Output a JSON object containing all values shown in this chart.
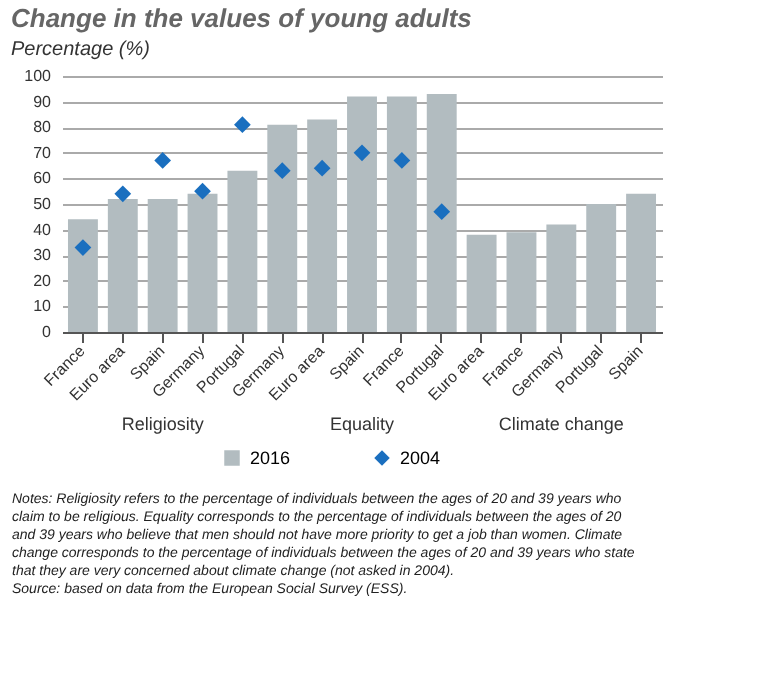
{
  "chart_data": {
    "type": "bar",
    "title": "Change in the values of young adults",
    "subtitle": "Percentage (%)",
    "categories": [
      "France",
      "Euro area",
      "Spain",
      "Germany",
      "Portugal",
      "Germany",
      "Euro area",
      "Spain",
      "France",
      "Portugal",
      "Euro area",
      "France",
      "Germany",
      "Portugal",
      "Spain"
    ],
    "series": [
      {
        "name": "2016",
        "color": "#b2bcc0",
        "values": [
          44,
          52,
          52,
          54,
          63,
          81,
          83,
          92,
          92,
          93,
          38,
          39,
          42,
          50,
          54
        ]
      },
      {
        "name": "2004",
        "type": "scatter",
        "marker": "diamond",
        "color": "#1a6fbf",
        "values": [
          33,
          54,
          67,
          55,
          81,
          63,
          64,
          70,
          67,
          47,
          null,
          null,
          null,
          null,
          null
        ]
      }
    ],
    "ylim": [
      0,
      100
    ],
    "yticks": [
      0,
      10,
      20,
      30,
      40,
      50,
      60,
      70,
      80,
      90,
      100
    ],
    "grid": "y",
    "legend": "bottom",
    "annotations": [
      "Religiosity",
      "Equality",
      "Climate change",
      "Notes: Religiosity refers to the percentage of individuals between the ages of 20 and 39 years who claim to be religious. Equality corresponds to the percentage of individuals between the ages of 20 and 39 years who believe that men should not have more priority to get a job than women. Climate change corresponds to the percentage of individuals between the ages of 20 and 39 years who state that they are very concerned about climate change (not asked in 2004).",
      "Source: based on data from the European Social Survey (ESS)."
    ]
  }
}
